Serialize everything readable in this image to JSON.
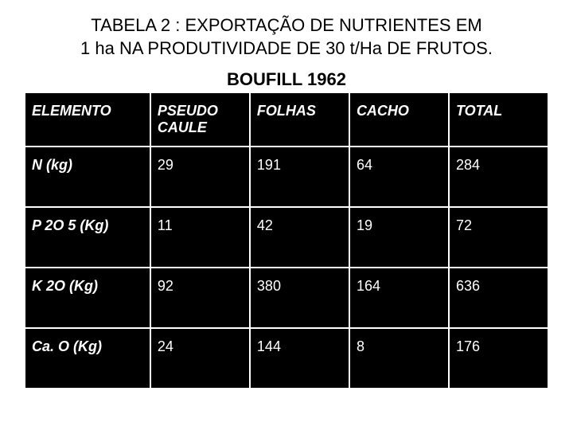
{
  "title_line1": "TABELA 2 : EXPORTAÇÃO DE NUTRIENTES EM",
  "title_line2": "1 ha NA PRODUTIVIDADE DE 30 t/Ha DE FRUTOS.",
  "subtitle": "BOUFILL 1962",
  "table": {
    "type": "table",
    "background_color": "#000000",
    "text_color": "#ffffff",
    "border_color": "#ffffff",
    "header_fontsize": 18,
    "cell_fontsize": 18,
    "columns": [
      {
        "label": "ELEMENTO",
        "width_pct": 24,
        "align": "left"
      },
      {
        "label": "PSEUDO CAULE",
        "width_pct": 19,
        "align": "left"
      },
      {
        "label": "FOLHAS",
        "width_pct": 19,
        "align": "left"
      },
      {
        "label": "CACHO",
        "width_pct": 19,
        "align": "left"
      },
      {
        "label": "TOTAL",
        "width_pct": 19,
        "align": "left"
      }
    ],
    "rows": [
      {
        "label": "N (kg)",
        "values": [
          "29",
          "191",
          "64",
          "284"
        ]
      },
      {
        "label": "P 2O 5 (Kg)",
        "values": [
          "11",
          "42",
          "19",
          "72"
        ]
      },
      {
        "label": "K 2O (Kg)",
        "values": [
          "92",
          "380",
          "164",
          "636"
        ]
      },
      {
        "label": "Ca. O (Kg)",
        "values": [
          "24",
          "144",
          "8",
          "176"
        ]
      }
    ]
  }
}
